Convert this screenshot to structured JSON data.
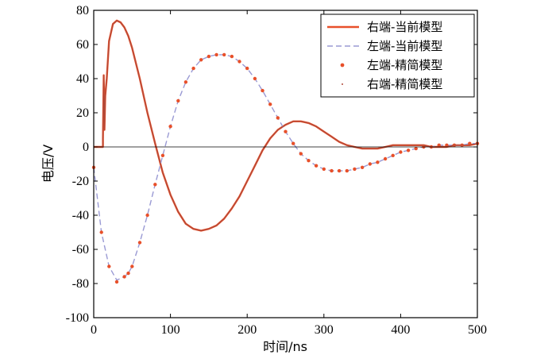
{
  "chart_data": {
    "type": "line",
    "title": "",
    "xlabel": "时间/ns",
    "ylabel": "电压/V",
    "xlim": [
      0,
      500
    ],
    "ylim": [
      -100,
      80
    ],
    "xticks": [
      0,
      100,
      200,
      300,
      400,
      500
    ],
    "yticks": [
      -100,
      -80,
      -60,
      -40,
      -20,
      0,
      20,
      40,
      60,
      80
    ],
    "grid": false,
    "legend_position": "top-right",
    "series": [
      {
        "name": "右端-当前模型",
        "style": "solid",
        "color": "#e8502a",
        "x": [
          0,
          12,
          12,
          13,
          14,
          15,
          17,
          20,
          25,
          30,
          35,
          40,
          45,
          50,
          60,
          70,
          80,
          90,
          100,
          110,
          120,
          130,
          140,
          150,
          160,
          170,
          180,
          190,
          200,
          210,
          220,
          230,
          240,
          250,
          260,
          270,
          280,
          290,
          300,
          310,
          320,
          330,
          340,
          350,
          360,
          370,
          380,
          390,
          400,
          410,
          420,
          430,
          440,
          450,
          460,
          470,
          480,
          490,
          500
        ],
        "y": [
          0,
          0,
          5,
          42,
          10,
          30,
          40,
          62,
          72,
          74,
          73,
          70,
          65,
          58,
          40,
          20,
          2,
          -15,
          -28,
          -38,
          -45,
          -48,
          -49,
          -48,
          -46,
          -42,
          -36,
          -29,
          -20,
          -11,
          -2,
          5,
          10,
          13,
          15,
          15,
          14,
          12,
          9,
          6,
          3,
          1,
          0,
          -1,
          -1,
          -1,
          0,
          1,
          1,
          1,
          1,
          1,
          0,
          0,
          0,
          1,
          1,
          1,
          2
        ]
      },
      {
        "name": "左端-当前模型",
        "style": "dashed",
        "color": "#9a9ad4",
        "x": [
          0,
          10,
          20,
          30,
          40,
          45,
          50,
          60,
          70,
          80,
          90,
          100,
          110,
          120,
          130,
          140,
          150,
          160,
          170,
          180,
          190,
          200,
          210,
          220,
          230,
          240,
          250,
          260,
          270,
          280,
          290,
          300,
          310,
          320,
          330,
          340,
          350,
          360,
          370,
          380,
          390,
          400,
          410,
          420,
          430,
          440,
          450,
          460,
          470,
          480,
          490,
          500
        ],
        "y": [
          -12,
          -50,
          -70,
          -78,
          -76,
          -74,
          -70,
          -56,
          -40,
          -22,
          -5,
          12,
          27,
          38,
          46,
          51,
          53,
          54,
          54,
          53,
          50,
          46,
          40,
          33,
          25,
          17,
          9,
          2,
          -4,
          -8,
          -11,
          -13,
          -14,
          -14,
          -14,
          -13,
          -12,
          -10,
          -9,
          -7,
          -5,
          -3,
          -2,
          -1,
          0,
          0,
          1,
          1,
          1,
          1,
          2,
          2
        ]
      },
      {
        "name": "左端-精简模型",
        "style": "dotted",
        "color": "#e8502a",
        "x": [
          0,
          10,
          20,
          30,
          40,
          45,
          50,
          60,
          70,
          80,
          90,
          100,
          110,
          120,
          130,
          140,
          150,
          160,
          170,
          180,
          190,
          200,
          210,
          220,
          230,
          240,
          250,
          260,
          270,
          280,
          290,
          300,
          310,
          320,
          330,
          340,
          350,
          360,
          370,
          380,
          390,
          400,
          410,
          420,
          430,
          440,
          450,
          460,
          470,
          480,
          490,
          500
        ],
        "y": [
          -12,
          -50,
          -70,
          -79,
          -76,
          -74,
          -70,
          -56,
          -40,
          -22,
          -5,
          12,
          27,
          38,
          46,
          51,
          53,
          54,
          54,
          53,
          50,
          46,
          40,
          33,
          25,
          17,
          9,
          2,
          -4,
          -8,
          -11,
          -13,
          -14,
          -14,
          -14,
          -13,
          -12,
          -10,
          -9,
          -7,
          -5,
          -3,
          -2,
          -1,
          0,
          0,
          1,
          1,
          1,
          1,
          2,
          2
        ]
      },
      {
        "name": "右端-精简模型",
        "style": "thin",
        "color": "#b04a3a",
        "x": [
          0,
          12,
          12,
          13,
          14,
          15,
          17,
          20,
          25,
          30,
          35,
          40,
          45,
          50,
          60,
          70,
          80,
          90,
          100,
          110,
          120,
          130,
          140,
          150,
          160,
          170,
          180,
          190,
          200,
          210,
          220,
          230,
          240,
          250,
          260,
          270,
          280,
          290,
          300,
          310,
          320,
          330,
          340,
          350,
          360,
          370,
          380,
          390,
          400,
          410,
          420,
          430,
          440,
          450,
          460,
          470,
          480,
          490,
          500
        ],
        "y": [
          0,
          0,
          5,
          42,
          10,
          30,
          40,
          62,
          72,
          74,
          73,
          70,
          65,
          58,
          40,
          20,
          2,
          -15,
          -28,
          -38,
          -45,
          -48,
          -49,
          -48,
          -46,
          -42,
          -36,
          -29,
          -20,
          -11,
          -2,
          5,
          10,
          13,
          15,
          15,
          14,
          12,
          9,
          6,
          3,
          1,
          0,
          -1,
          -1,
          -1,
          0,
          1,
          1,
          1,
          1,
          1,
          0,
          0,
          0,
          1,
          1,
          1,
          2
        ]
      }
    ]
  }
}
